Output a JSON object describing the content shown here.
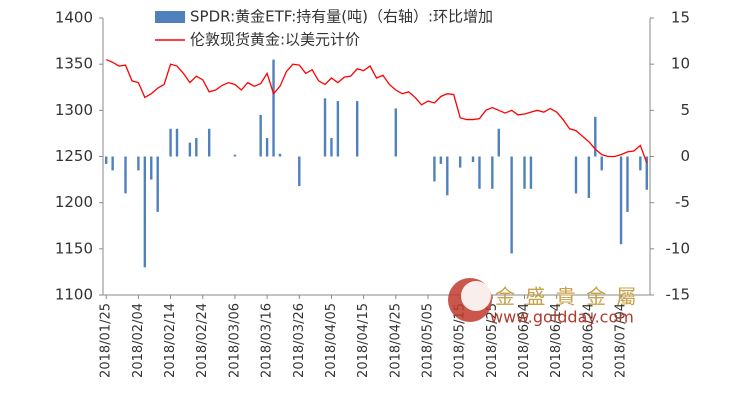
{
  "chart_data": {
    "type": "bar-line",
    "categories": [
      "2018/01/25",
      null,
      null,
      null,
      null,
      "2018/02/04",
      null,
      null,
      null,
      null,
      "2018/02/14",
      null,
      null,
      null,
      null,
      "2018/02/24",
      null,
      null,
      null,
      null,
      "2018/03/06",
      null,
      null,
      null,
      null,
      "2018/03/16",
      null,
      null,
      null,
      null,
      "2018/03/26",
      null,
      null,
      null,
      null,
      "2018/04/05",
      null,
      null,
      null,
      null,
      "2018/04/15",
      null,
      null,
      null,
      null,
      "2018/04/25",
      null,
      null,
      null,
      null,
      "2018/05/05",
      null,
      null,
      null,
      null,
      "2018/05/15",
      null,
      null,
      null,
      null,
      "2018/05/25",
      null,
      null,
      null,
      null,
      "2018/06/04",
      null,
      null,
      null,
      null,
      "2018/06/14",
      null,
      null,
      null,
      null,
      "2018/06/24",
      null,
      null,
      null,
      null,
      "2018/07/04",
      null,
      null,
      null,
      null
    ],
    "series": [
      {
        "name": "SPDR:黄金ETF:持有量(吨)（右轴）:环比增加",
        "type": "bar",
        "axis": "y2",
        "color": "#4f81bd",
        "values": [
          -0.8,
          -1.5,
          0,
          -4,
          0,
          -1.5,
          -12,
          -2.5,
          -6,
          0,
          3,
          3,
          0,
          1.5,
          2,
          0,
          3,
          0,
          0,
          0,
          0.2,
          0,
          0,
          0,
          4.5,
          2,
          10.5,
          0.3,
          0,
          0,
          -3.2,
          0,
          0,
          0,
          6.3,
          2,
          6,
          0,
          0,
          6,
          0,
          0,
          0,
          0,
          0,
          5.2,
          0,
          0,
          0,
          0,
          0,
          -2.7,
          -0.8,
          -4.2,
          0,
          -1.2,
          0,
          -0.6,
          -3.5,
          0,
          -3.5,
          3,
          0,
          -10.5,
          0,
          -3.5,
          -3.5,
          0,
          0,
          0,
          0,
          0,
          0,
          -4,
          0,
          -4.5,
          4.3,
          -1.5,
          0,
          0,
          -9.5,
          -6,
          0,
          -1.5,
          -3.6
        ]
      },
      {
        "name": "伦敦现货黄金:以美元计价",
        "type": "line",
        "color": "#ff0000",
        "values": [
          1355,
          1352,
          1348,
          1349,
          1332,
          1330,
          1314,
          1318,
          1324,
          1328,
          1350,
          1348,
          1340,
          1330,
          1337,
          1333,
          1320,
          1322,
          1327,
          1330,
          1328,
          1322,
          1330,
          1326,
          1329,
          1340,
          1318,
          1326,
          1342,
          1350,
          1349,
          1340,
          1344,
          1332,
          1328,
          1335,
          1330,
          1336,
          1337,
          1345,
          1343,
          1348,
          1335,
          1338,
          1328,
          1322,
          1318,
          1320,
          1314,
          1306,
          1310,
          1308,
          1315,
          1318,
          1317,
          1292,
          1290,
          1290,
          1291,
          1300,
          1303,
          1300,
          1297,
          1300,
          1295,
          1296,
          1298,
          1300,
          1298,
          1302,
          1298,
          1290,
          1280,
          1278,
          1272,
          1266,
          1258,
          1252,
          1250,
          1250,
          1252,
          1255,
          1256,
          1262,
          1243
        ]
      }
    ],
    "ylim": [
      1100,
      1400
    ],
    "yticks": [
      1100,
      1150,
      1200,
      1250,
      1300,
      1350,
      1400
    ],
    "y2lim": [
      -15,
      15
    ],
    "y2ticks": [
      -15,
      -10,
      -5,
      0,
      5,
      10,
      15
    ],
    "watermark": {
      "brand": "金 盛 貴 金 屬",
      "url": "www.goldday.com"
    }
  }
}
